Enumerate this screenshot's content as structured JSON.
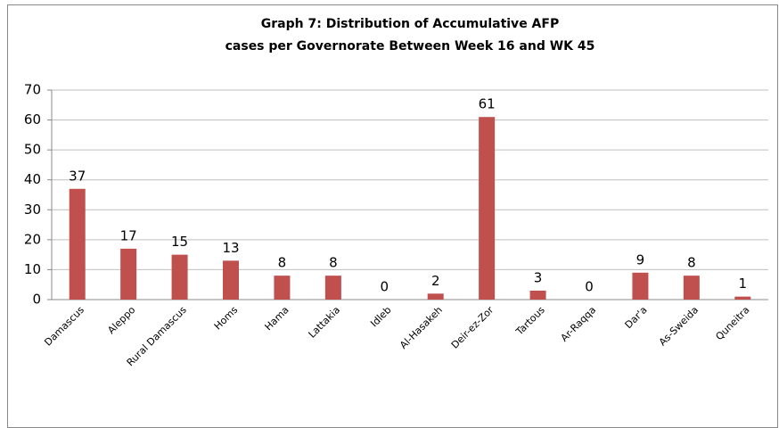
{
  "chart_data": {
    "type": "bar",
    "title": [
      "Graph 7: Distribution of Accumulative AFP",
      "cases per Governorate Between Week 16  and WK 45"
    ],
    "categories": [
      "Damascus",
      "Aleppo",
      "Rural Damascus",
      "Homs",
      "Hama",
      "Lattakia",
      "Idleb",
      "Al-Hasakeh",
      "Deir-ez-Zor",
      "Tartous",
      "Ar-Raqqa",
      "Dar'a",
      "As-Sweida",
      "Quneitra"
    ],
    "values": [
      37,
      17,
      15,
      13,
      8,
      8,
      0,
      2,
      61,
      3,
      0,
      9,
      8,
      1
    ],
    "color": "#c0504d",
    "ylim": [
      0,
      70
    ],
    "yticks": [
      0,
      10,
      20,
      30,
      40,
      50,
      60,
      70
    ],
    "grid": true
  }
}
